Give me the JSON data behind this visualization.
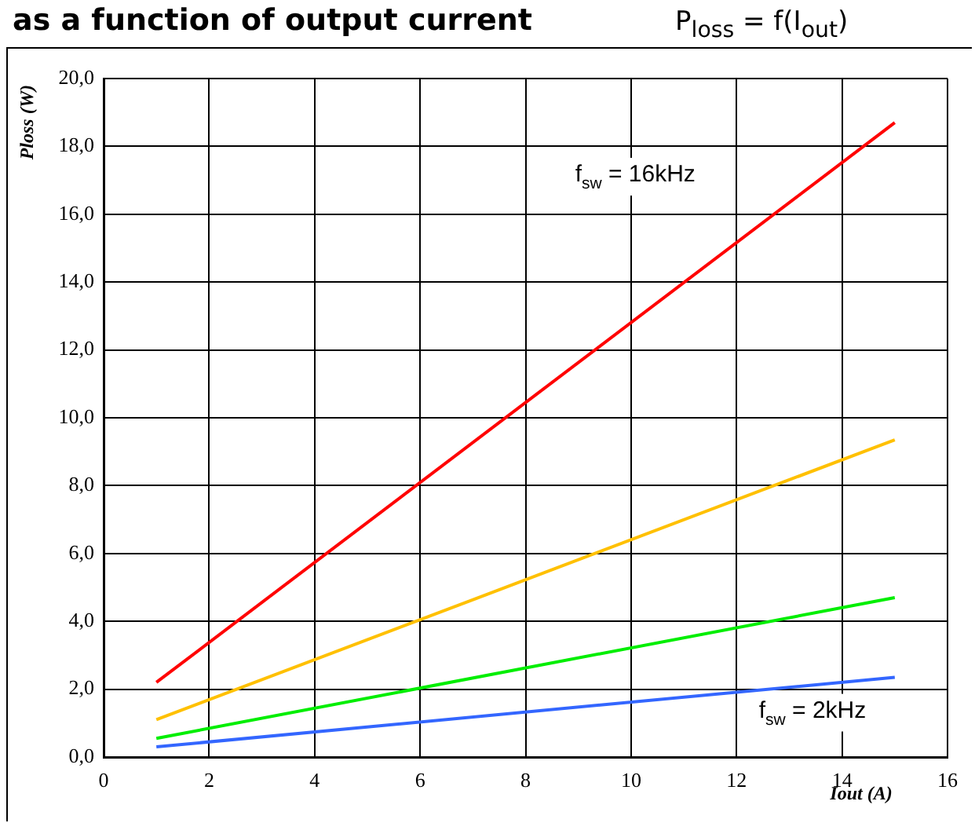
{
  "chart_data": {
    "type": "line",
    "title": "as a function of output current",
    "subtitle": "P$_{loss}$ = f(I$_{out}$)",
    "xlabel": "Iout (A)",
    "ylabel": "Ploss (W)",
    "x": [
      1,
      15
    ],
    "series": [
      {
        "color": "#ff0000",
        "values": [
          2.2,
          18.7
        ]
      },
      {
        "color": "#ffc000",
        "values": [
          1.1,
          9.35
        ]
      },
      {
        "color": "#00ee00",
        "values": [
          0.55,
          4.7
        ]
      },
      {
        "color": "#3366ff",
        "values": [
          0.3,
          2.35
        ]
      }
    ],
    "xlim": [
      0,
      16
    ],
    "xticks": [
      0,
      2,
      4,
      6,
      8,
      10,
      12,
      14,
      16
    ],
    "ylim": [
      0,
      20
    ],
    "yticks": [
      {
        "value": 0,
        "label": "0,0"
      },
      {
        "value": 2,
        "label": "2,0"
      },
      {
        "value": 4,
        "label": "4,0"
      },
      {
        "value": 6,
        "label": "6,0"
      },
      {
        "value": 8,
        "label": "8,0"
      },
      {
        "value": 10,
        "label": "10,0"
      },
      {
        "value": 12,
        "label": "12,0"
      },
      {
        "value": 14,
        "label": "14,0"
      },
      {
        "value": 16,
        "label": "16,0"
      },
      {
        "value": 18,
        "label": "18,0"
      },
      {
        "value": 20,
        "label": "20,0"
      }
    ],
    "grid": true,
    "legend": false,
    "marker": "none",
    "line_style": "solid",
    "annotations": [
      "f$_{sw}$ = 16kHz",
      "f$_{sw}$ = 2kHz"
    ]
  }
}
